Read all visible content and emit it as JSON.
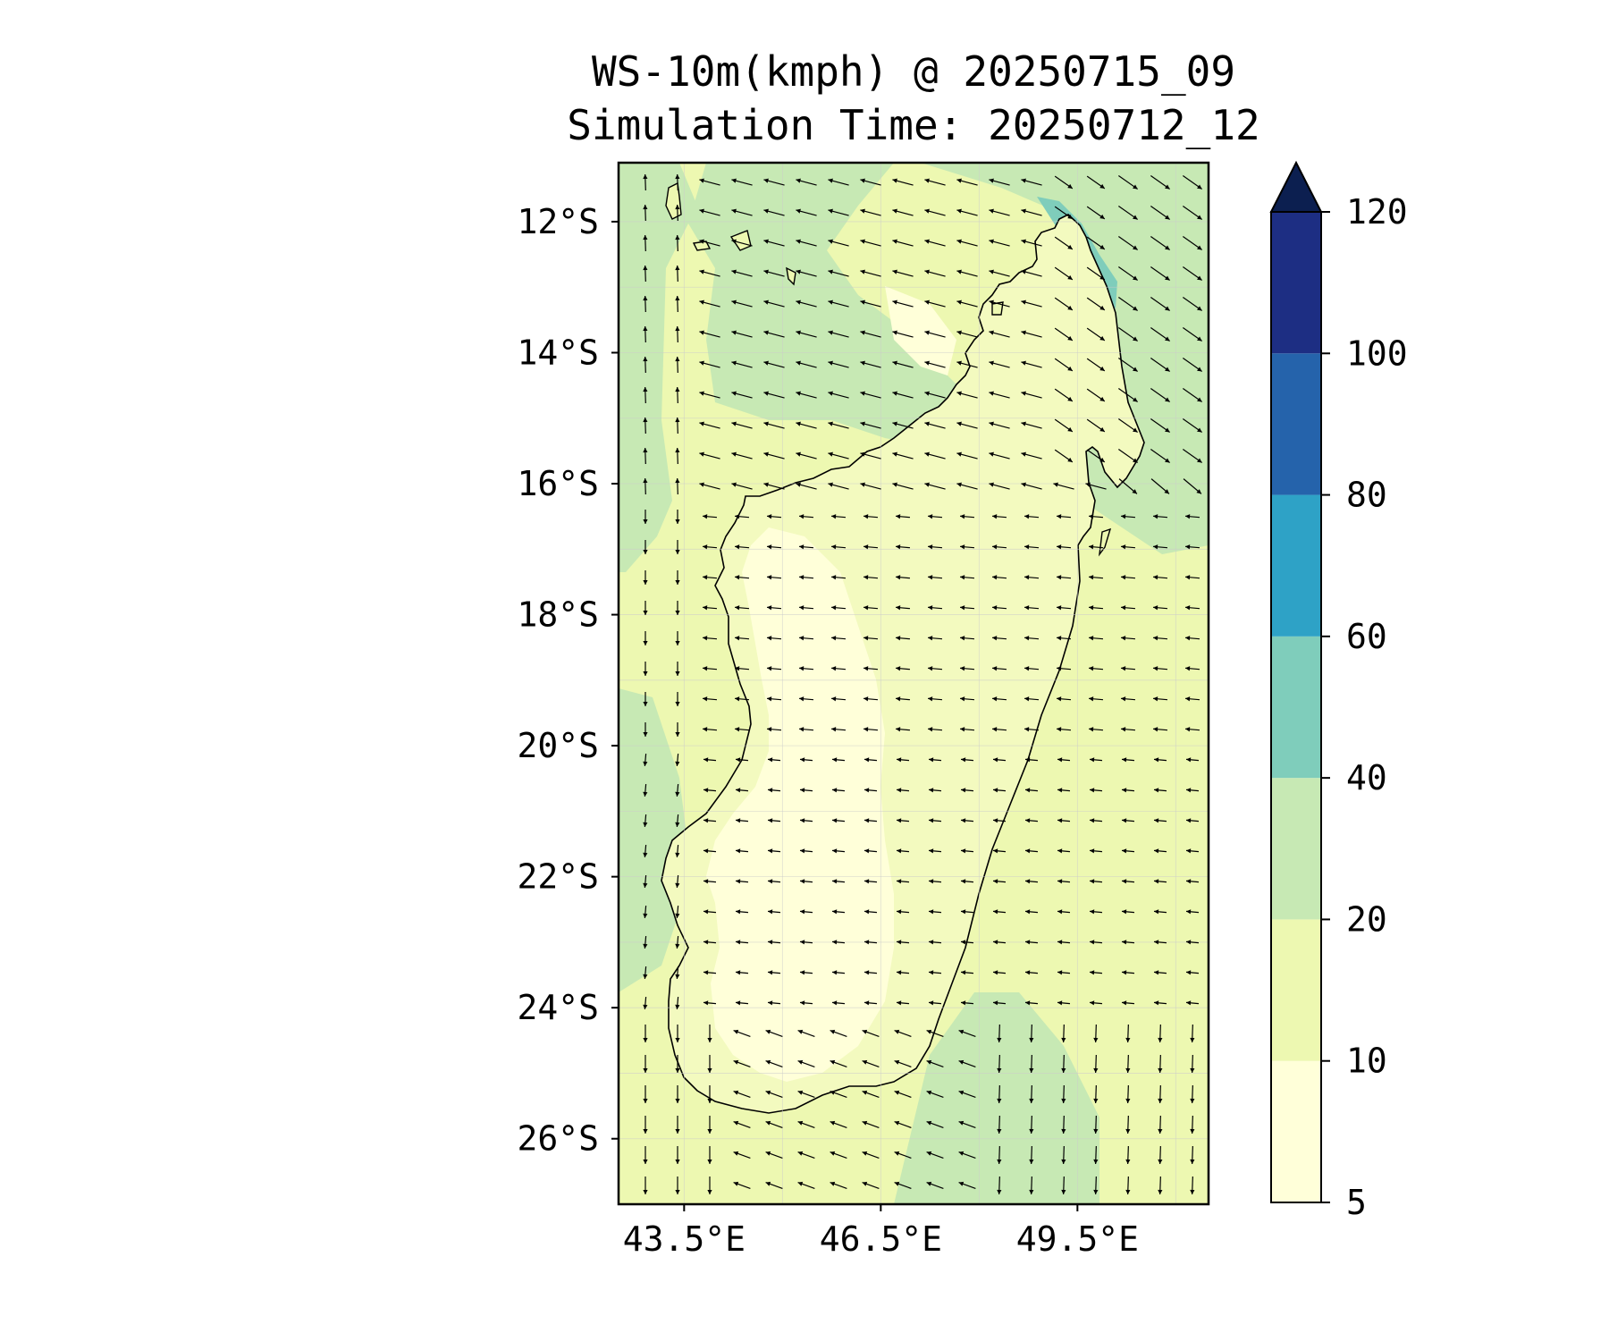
{
  "title": {
    "line1": "WS-10m(kmph) @ 20250715_09",
    "line2": "Simulation Time: 20250712_12"
  },
  "map": {
    "lon_range": [
      42.5,
      51.5
    ],
    "lat_range": [
      -27.0,
      -11.1
    ],
    "lat_ticks": [
      {
        "value": -12,
        "label": "12°S"
      },
      {
        "value": -14,
        "label": "14°S"
      },
      {
        "value": -16,
        "label": "16°S"
      },
      {
        "value": -18,
        "label": "18°S"
      },
      {
        "value": -20,
        "label": "20°S"
      },
      {
        "value": -22,
        "label": "22°S"
      },
      {
        "value": -24,
        "label": "24°S"
      },
      {
        "value": -26,
        "label": "26°S"
      }
    ],
    "lon_ticks": [
      {
        "value": 43.5,
        "label": "43.5°E"
      },
      {
        "value": 46.5,
        "label": "46.5°E"
      },
      {
        "value": 49.5,
        "label": "49.5°E"
      }
    ],
    "land": "Madagascar",
    "colors": {
      "land_outline": "#000000",
      "sea_background": "#edf8b1",
      "arrows": "#000000"
    }
  },
  "colorbar": {
    "levels": [
      {
        "value": 5,
        "label": "5"
      },
      {
        "value": 10,
        "label": "10"
      },
      {
        "value": 20,
        "label": "20"
      },
      {
        "value": 40,
        "label": "40"
      },
      {
        "value": 60,
        "label": "60"
      },
      {
        "value": 80,
        "label": "80"
      },
      {
        "value": 100,
        "label": "100"
      },
      {
        "value": 120,
        "label": "120"
      }
    ],
    "colors": [
      "#ffffd9",
      "#edf8b1",
      "#c7e9b4",
      "#7fcdbb",
      "#2ea2c6",
      "#2563ab",
      "#1d2e83"
    ],
    "extend_color": "#0c1f50",
    "extend": "max"
  }
}
